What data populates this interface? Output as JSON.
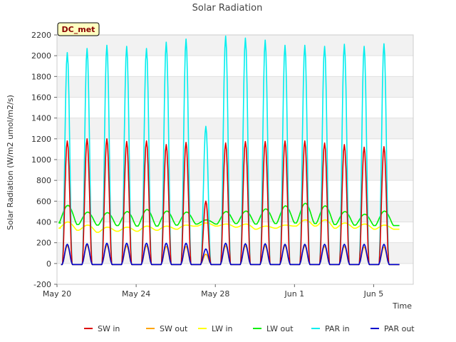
{
  "chart_data": {
    "type": "line",
    "title": "Solar Radiation",
    "xlabel": "Time",
    "ylabel": "Solar Radiation (W/m2 umol/m2/s)",
    "site_label": "DC_met",
    "x_ticks": [
      {
        "day": 0,
        "label": "May 20"
      },
      {
        "day": 4,
        "label": "May 24"
      },
      {
        "day": 8,
        "label": "May 28"
      },
      {
        "day": 12,
        "label": "Jun 1"
      },
      {
        "day": 16,
        "label": "Jun 5"
      }
    ],
    "xlim": [
      0,
      18
    ],
    "ylim": [
      -200,
      2200
    ],
    "y_ticks": [
      -200,
      0,
      200,
      400,
      600,
      800,
      1000,
      1200,
      1400,
      1600,
      1800,
      2000,
      2200
    ],
    "legend_position": "bottom",
    "colors": {
      "SW in": "#dd0000",
      "SW out": "#ffa500",
      "LW in": "#ffff00",
      "LW out": "#00ee00",
      "PAR in": "#00eeee",
      "PAR out": "#0000cc"
    },
    "day_offsets": [
      0.5,
      1.5,
      2.5,
      3.5,
      4.5,
      5.5,
      6.5,
      7.5,
      8.5,
      9.5,
      10.5,
      11.5,
      12.5,
      13.5,
      14.5,
      15.5,
      16.5
    ],
    "series": [
      {
        "name": "SW in",
        "color": "#dd0000",
        "kind": "peaks",
        "peaks": [
          1180,
          1200,
          1200,
          1175,
          1180,
          1145,
          1165,
          600,
          1160,
          1175,
          1175,
          1180,
          1180,
          1160,
          1145,
          1120,
          1125
        ]
      },
      {
        "name": "SW out",
        "color": "#ffa500",
        "kind": "peaks",
        "peaks": [
          170,
          175,
          175,
          170,
          170,
          165,
          165,
          90,
          170,
          170,
          170,
          170,
          170,
          165,
          165,
          160,
          160
        ]
      },
      {
        "name": "LW in",
        "color": "#ffff00",
        "kind": "band",
        "highs": [
          400,
          370,
          350,
          350,
          360,
          360,
          370,
          390,
          380,
          380,
          360,
          370,
          420,
          420,
          390,
          380,
          370
        ],
        "lows": [
          340,
          320,
          300,
          310,
          310,
          320,
          330,
          360,
          360,
          350,
          330,
          340,
          360,
          360,
          340,
          340,
          330
        ]
      },
      {
        "name": "LW out",
        "color": "#00ee00",
        "kind": "band",
        "highs": [
          560,
          495,
          490,
          500,
          520,
          505,
          495,
          420,
          500,
          505,
          525,
          555,
          580,
          555,
          500,
          475,
          505
        ],
        "lows": [
          390,
          375,
          370,
          365,
          360,
          360,
          370,
          380,
          380,
          385,
          380,
          385,
          390,
          385,
          375,
          370,
          365
        ]
      },
      {
        "name": "PAR in",
        "color": "#00eeee",
        "kind": "peaks",
        "peaks": [
          2030,
          2070,
          2100,
          2090,
          2070,
          2130,
          2160,
          1320,
          2190,
          2170,
          2150,
          2100,
          2100,
          2090,
          2110,
          2090,
          2115
        ]
      },
      {
        "name": "PAR out",
        "color": "#0000cc",
        "kind": "peaks",
        "peaks": [
          185,
          190,
          195,
          195,
          195,
          195,
          195,
          140,
          195,
          190,
          190,
          185,
          185,
          185,
          185,
          185,
          185
        ]
      }
    ]
  }
}
